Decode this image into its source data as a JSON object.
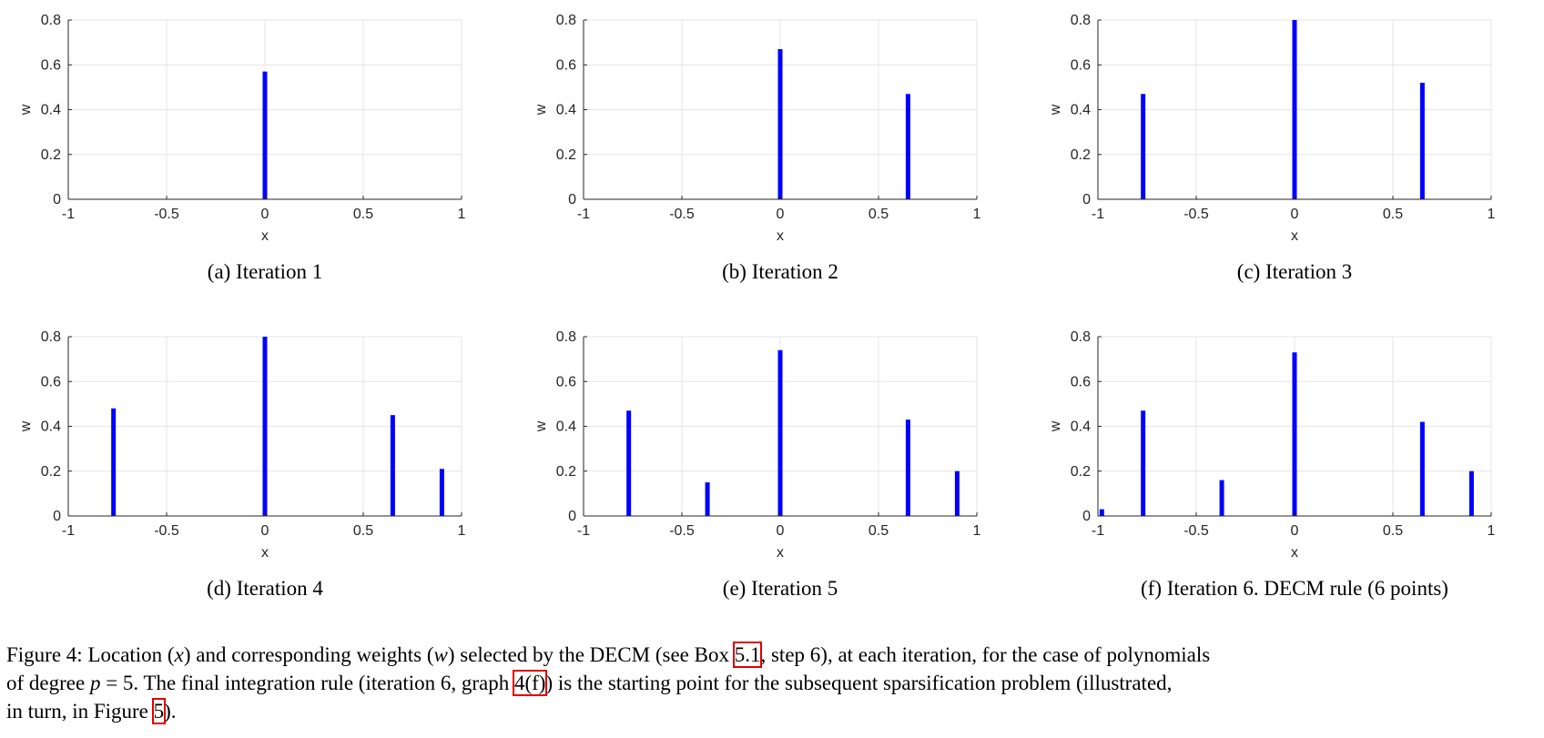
{
  "chart_data": [
    {
      "type": "bar",
      "caption": "(a)  Iteration 1",
      "xlabel": "x",
      "ylabel": "w",
      "xlim": [
        -1,
        1
      ],
      "ylim": [
        0,
        0.8
      ],
      "xticks": [
        -1,
        -0.5,
        0,
        0.5,
        1
      ],
      "xtick_labels": [
        "-1",
        "-0.5",
        "0",
        "0.5",
        "1"
      ],
      "yticks": [
        0,
        0.2,
        0.4,
        0.6,
        0.8
      ],
      "ytick_labels": [
        "0",
        "0.2",
        "0.4",
        "0.6",
        "0.8"
      ],
      "grid": true,
      "points": [
        {
          "x": 0.0,
          "w": 0.57
        }
      ]
    },
    {
      "type": "bar",
      "caption": "(b)  Iteration 2",
      "xlabel": "x",
      "ylabel": "w",
      "xlim": [
        -1,
        1
      ],
      "ylim": [
        0,
        0.8
      ],
      "xticks": [
        -1,
        -0.5,
        0,
        0.5,
        1
      ],
      "xtick_labels": [
        "-1",
        "-0.5",
        "0",
        "0.5",
        "1"
      ],
      "yticks": [
        0,
        0.2,
        0.4,
        0.6,
        0.8
      ],
      "ytick_labels": [
        "0",
        "0.2",
        "0.4",
        "0.6",
        "0.8"
      ],
      "grid": true,
      "points": [
        {
          "x": 0.0,
          "w": 0.67
        },
        {
          "x": 0.65,
          "w": 0.47
        }
      ]
    },
    {
      "type": "bar",
      "caption": "(c)  Iteration 3",
      "xlabel": "x",
      "ylabel": "w",
      "xlim": [
        -1,
        1
      ],
      "ylim": [
        0,
        0.8
      ],
      "xticks": [
        -1,
        -0.5,
        0,
        0.5,
        1
      ],
      "xtick_labels": [
        "-1",
        "-0.5",
        "0",
        "0.5",
        "1"
      ],
      "yticks": [
        0,
        0.2,
        0.4,
        0.6,
        0.8
      ],
      "ytick_labels": [
        "0",
        "0.2",
        "0.4",
        "0.6",
        "0.8"
      ],
      "grid": true,
      "points": [
        {
          "x": -0.77,
          "w": 0.47
        },
        {
          "x": 0.0,
          "w": 0.8
        },
        {
          "x": 0.65,
          "w": 0.52
        }
      ]
    },
    {
      "type": "bar",
      "caption": "(d)  Iteration 4",
      "xlabel": "x",
      "ylabel": "w",
      "xlim": [
        -1,
        1
      ],
      "ylim": [
        0,
        0.8
      ],
      "xticks": [
        -1,
        -0.5,
        0,
        0.5,
        1
      ],
      "xtick_labels": [
        "-1",
        "-0.5",
        "0",
        "0.5",
        "1"
      ],
      "yticks": [
        0,
        0.2,
        0.4,
        0.6,
        0.8
      ],
      "ytick_labels": [
        "0",
        "0.2",
        "0.4",
        "0.6",
        "0.8"
      ],
      "grid": true,
      "points": [
        {
          "x": -0.77,
          "w": 0.48
        },
        {
          "x": 0.0,
          "w": 0.8
        },
        {
          "x": 0.65,
          "w": 0.45
        },
        {
          "x": 0.9,
          "w": 0.21
        }
      ]
    },
    {
      "type": "bar",
      "caption": "(e)  Iteration 5",
      "xlabel": "x",
      "ylabel": "w",
      "xlim": [
        -1,
        1
      ],
      "ylim": [
        0,
        0.8
      ],
      "xticks": [
        -1,
        -0.5,
        0,
        0.5,
        1
      ],
      "xtick_labels": [
        "-1",
        "-0.5",
        "0",
        "0.5",
        "1"
      ],
      "yticks": [
        0,
        0.2,
        0.4,
        0.6,
        0.8
      ],
      "ytick_labels": [
        "0",
        "0.2",
        "0.4",
        "0.6",
        "0.8"
      ],
      "grid": true,
      "points": [
        {
          "x": -0.77,
          "w": 0.47
        },
        {
          "x": -0.37,
          "w": 0.15
        },
        {
          "x": 0.0,
          "w": 0.74
        },
        {
          "x": 0.65,
          "w": 0.43
        },
        {
          "x": 0.9,
          "w": 0.2
        }
      ]
    },
    {
      "type": "bar",
      "caption": "(f)  Iteration 6. DECM rule (6 points)",
      "xlabel": "x",
      "ylabel": "w",
      "xlim": [
        -1,
        1
      ],
      "ylim": [
        0,
        0.8
      ],
      "xticks": [
        -1,
        -0.5,
        0,
        0.5,
        1
      ],
      "xtick_labels": [
        "-1",
        "-0.5",
        "0",
        "0.5",
        "1"
      ],
      "yticks": [
        0,
        0.2,
        0.4,
        0.6,
        0.8
      ],
      "ytick_labels": [
        "0",
        "0.2",
        "0.4",
        "0.6",
        "0.8"
      ],
      "grid": true,
      "points": [
        {
          "x": -0.98,
          "w": 0.03
        },
        {
          "x": -0.77,
          "w": 0.47
        },
        {
          "x": -0.37,
          "w": 0.16
        },
        {
          "x": 0.0,
          "w": 0.73
        },
        {
          "x": 0.65,
          "w": 0.42
        },
        {
          "x": 0.9,
          "w": 0.2
        }
      ]
    }
  ],
  "colors": {
    "bar": "#0000ff",
    "grid": "#e6e6e6",
    "axis": "#262626"
  },
  "caption": {
    "l1_a": "Figure 4:   Location (",
    "l1_x": "x",
    "l1_b": ") and corresponding weights (",
    "l1_w": "w",
    "l1_c": ") selected by the DECM (see Box ",
    "l1_ref": "5.1",
    "l1_d": ", step 6), at each iteration, for the case of polynomials",
    "l2_a": "of degree ",
    "l2_p": "p",
    "l2_b": " = 5.  The final integration rule (iteration 6, graph ",
    "l2_ref": "4(f)",
    "l2_c": ") is the starting point for the subsequent sparsification problem (illustrated,",
    "l3_a": "in turn, in Figure ",
    "l3_ref": "5",
    "l3_b": ")."
  }
}
